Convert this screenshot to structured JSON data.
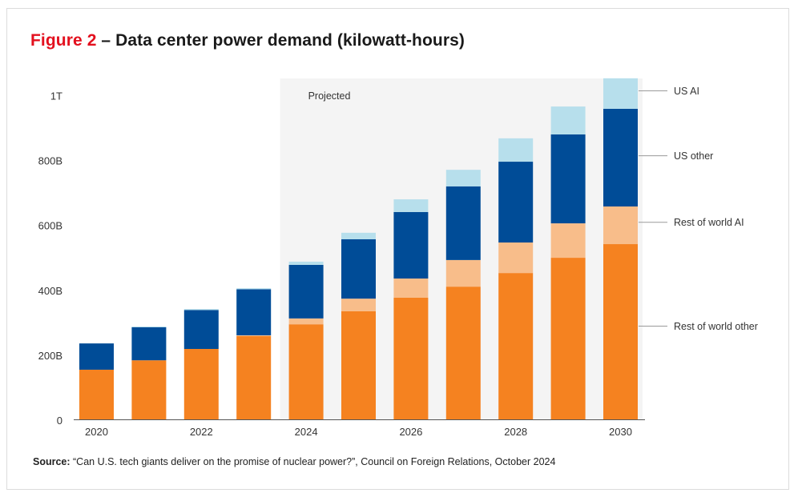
{
  "figure": {
    "label": "Figure 2",
    "title": " – Data center power demand (kilowatt-hours)",
    "source_label": "Source:",
    "source_text": " “Can U.S. tech giants deliver on the promise of nuclear power?”, Council on Foreign Relations, October 2024",
    "projected_label": "Projected",
    "colors": {
      "title_accent": "#e3101e",
      "projected_bg": "#f4f4f4"
    }
  },
  "chart_data": {
    "type": "bar",
    "stacked": true,
    "title": "Data center power demand (kilowatt-hours)",
    "xlabel": "",
    "ylabel": "",
    "categories": [
      "2020",
      "2021",
      "2022",
      "2023",
      "2024",
      "2025",
      "2026",
      "2027",
      "2028",
      "2029",
      "2030"
    ],
    "x_tick_labels": [
      "2020",
      "",
      "2022",
      "",
      "2024",
      "",
      "2026",
      "",
      "2028",
      "",
      "2030"
    ],
    "y_ticks": [
      {
        "value": 0,
        "label": "0"
      },
      {
        "value": 200,
        "label": "200B"
      },
      {
        "value": 400,
        "label": "400B"
      },
      {
        "value": 600,
        "label": "600B"
      },
      {
        "value": 800,
        "label": "800B"
      },
      {
        "value": 1000,
        "label": "1T"
      }
    ],
    "units": "billion kWh",
    "ylim": [
      0,
      1060
    ],
    "grid": false,
    "projected_from": "2024",
    "legend_placement": "right (leader-line labels)",
    "series": [
      {
        "name": "Rest of world other",
        "color": "#f58220",
        "values": [
          153,
          182,
          217,
          257,
          293,
          333,
          375,
          409,
          451,
          498,
          540
        ]
      },
      {
        "name": "Rest of world AI",
        "color": "#f8bd8a",
        "values": [
          0,
          0,
          0,
          2,
          18,
          39,
          59,
          82,
          94,
          106,
          116
        ]
      },
      {
        "name": "US other",
        "color": "#004c97",
        "values": [
          81,
          102,
          120,
          142,
          165,
          183,
          205,
          227,
          249,
          274,
          301
        ]
      },
      {
        "name": "US AI",
        "color": "#b7dfec",
        "values": [
          0,
          2,
          3,
          3,
          10,
          20,
          39,
          51,
          72,
          86,
          94
        ]
      }
    ],
    "legend": [
      {
        "name": "US AI",
        "anchor_value": 1000
      },
      {
        "name": "US other",
        "anchor_value": 800
      },
      {
        "name": "Rest of world AI",
        "anchor_value": 595
      },
      {
        "name": "Rest of world other",
        "anchor_value": 275
      }
    ]
  }
}
